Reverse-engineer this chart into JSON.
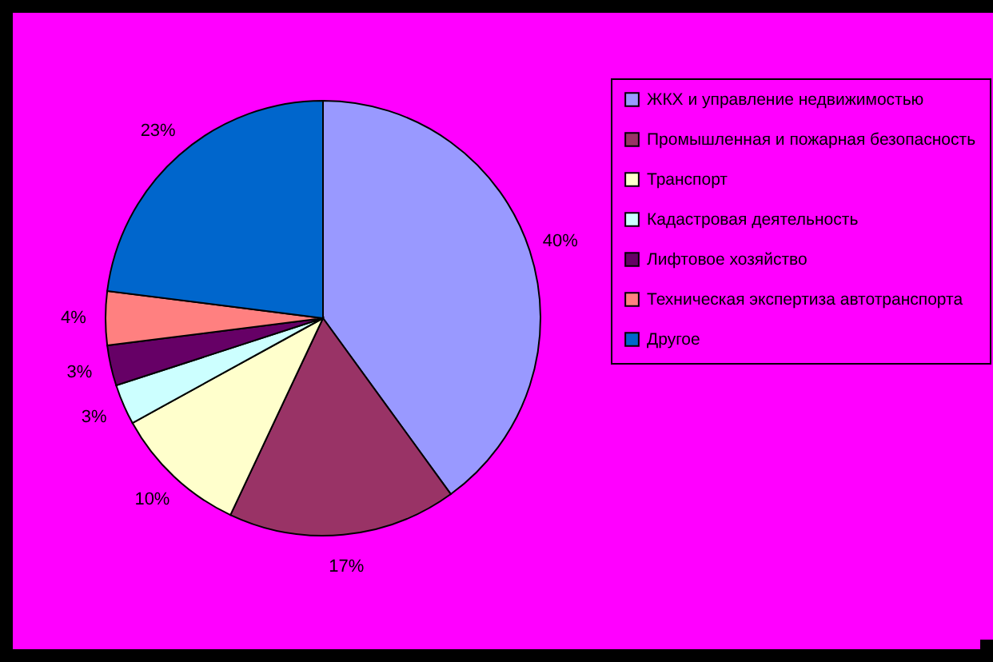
{
  "chart_data": {
    "type": "pie",
    "categories": [
      "ЖКХ и управление недвижимостью",
      "Промышленная и пожарная безопасность",
      "Транспорт",
      "Кадастровая деятельность",
      "Лифтовое хозяйство",
      "Техническая экспертиза автотранспорта",
      "Другое"
    ],
    "values": [
      40,
      17,
      10,
      3,
      3,
      4,
      23
    ],
    "colors": [
      "#9999ff",
      "#993366",
      "#ffffcc",
      "#ccffff",
      "#660066",
      "#ff8080",
      "#0066cc"
    ],
    "value_labels": [
      "40%",
      "17%",
      "10%",
      "3%",
      "3%",
      "4%",
      "23%"
    ],
    "legend": "right"
  }
}
